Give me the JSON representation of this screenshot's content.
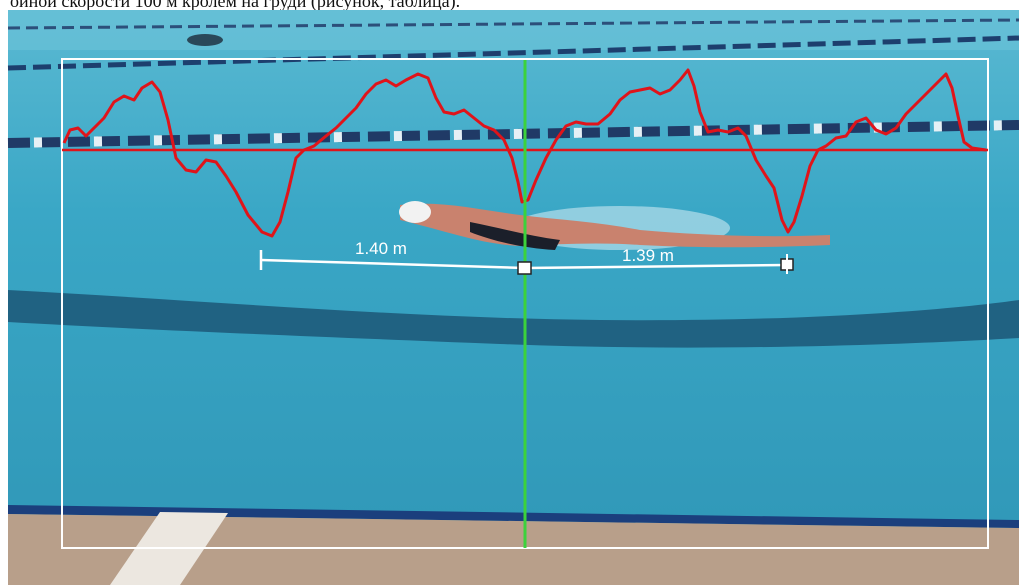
{
  "caption": "ойной скорости 100 м кролем на груди (рисунок, таблица).",
  "measurements": {
    "left_label": "1.40 m",
    "right_label": "1.39 m"
  },
  "colors": {
    "velocity_curve": "#e0141a",
    "baseline": "#e0141a",
    "cursor": "#3cd23c",
    "annotation": "#ffffff",
    "pool_water": "#3aa6c4"
  }
}
